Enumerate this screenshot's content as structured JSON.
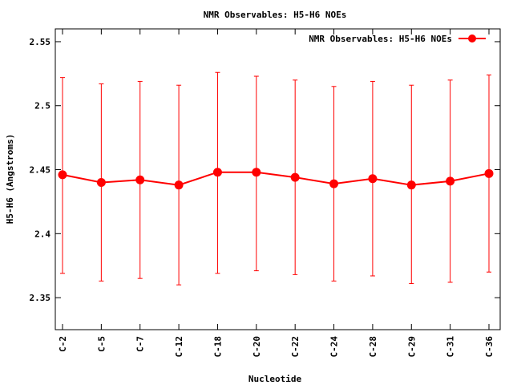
{
  "chart_data": {
    "type": "line",
    "title": "NMR Observables: H5-H6 NOEs",
    "xlabel": "Nucleotide",
    "ylabel": "H5-H6 (Angstroms)",
    "ylim": [
      2.325,
      2.56
    ],
    "yticks": [
      2.35,
      2.4,
      2.45,
      2.5,
      2.55
    ],
    "ytick_labels": [
      "2.35",
      "2.4",
      "2.45",
      "2.5",
      "2.55"
    ],
    "grid": false,
    "legend_position": "top-right",
    "categories": [
      "C-2",
      "C-5",
      "C-7",
      "C-12",
      "C-18",
      "C-20",
      "C-22",
      "C-24",
      "C-28",
      "C-29",
      "C-31",
      "C-36"
    ],
    "series": [
      {
        "name": "NMR Observables: H5-H6 NOEs",
        "color": "#ff0000",
        "values": [
          2.446,
          2.44,
          2.442,
          2.438,
          2.448,
          2.448,
          2.444,
          2.439,
          2.443,
          2.438,
          2.441,
          2.447
        ],
        "error_low": [
          2.369,
          2.363,
          2.365,
          2.36,
          2.369,
          2.371,
          2.368,
          2.363,
          2.367,
          2.361,
          2.362,
          2.37
        ],
        "error_high": [
          2.522,
          2.517,
          2.519,
          2.516,
          2.526,
          2.523,
          2.52,
          2.515,
          2.519,
          2.516,
          2.52,
          2.524
        ]
      }
    ]
  }
}
